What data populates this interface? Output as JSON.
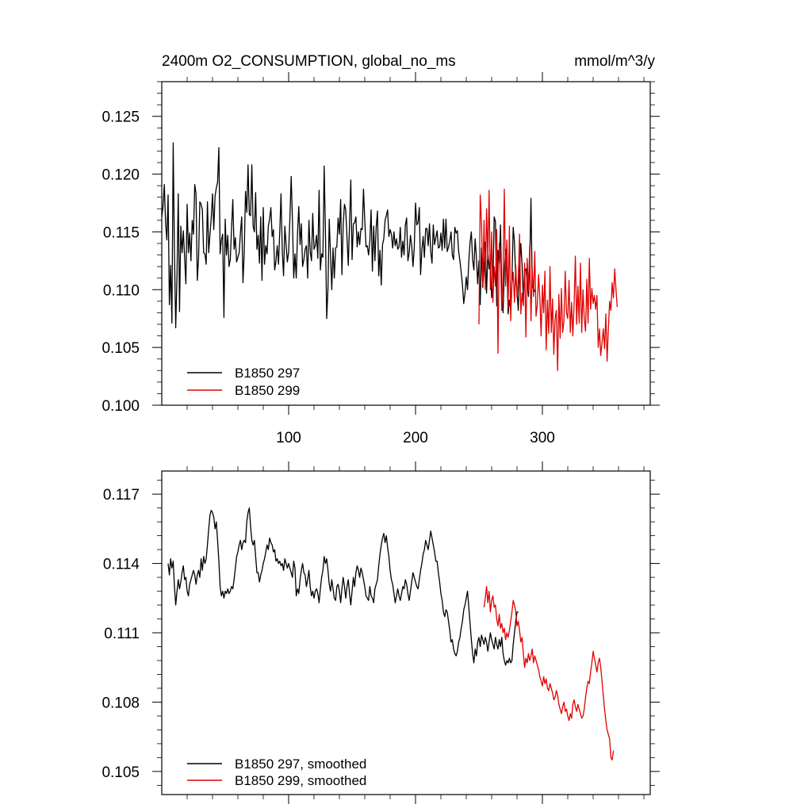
{
  "chart_data": [
    {
      "type": "line",
      "title": "2400m O2_CONSUMPTION, global_no_ms",
      "units": "mmol/m^3/y",
      "xlim": [
        0,
        385
      ],
      "ylim": [
        0.1,
        0.128
      ],
      "x_ticks": [
        100,
        200,
        300
      ],
      "y_ticks": [
        0.1,
        0.105,
        0.11,
        0.115,
        0.12,
        0.125
      ],
      "y_tick_labels": [
        "0.100",
        "0.105",
        "0.110",
        "0.115",
        "0.120",
        "0.125"
      ],
      "x_tick_labels": [
        "100",
        "200",
        "300"
      ],
      "legend_position": "bottom-left",
      "series": [
        {
          "name": "B1850 297",
          "color": "#000000",
          "x_start": 0,
          "values": [
            0.1163,
            0.1172,
            0.1191,
            0.1158,
            0.1143,
            0.1182,
            0.1087,
            0.1121,
            0.1071,
            0.1227,
            0.1132,
            0.1067,
            0.1112,
            0.1183,
            0.1081,
            0.1155,
            0.1132,
            0.1151,
            0.1128,
            0.1105,
            0.1174,
            0.1132,
            0.1149,
            0.1125,
            0.116,
            0.1148,
            0.1191,
            0.1183,
            0.1108,
            0.1127,
            0.1176,
            0.1174,
            0.1169,
            0.1132,
            0.1131,
            0.1122,
            0.1176,
            0.1132,
            0.1148,
            0.1162,
            0.1183,
            0.1152,
            0.1181,
            0.1188,
            0.1193,
            0.1223,
            0.1131,
            0.1143,
            0.1148,
            0.1076,
            0.1161,
            0.113,
            0.1147,
            0.112,
            0.1126,
            0.1153,
            0.1178,
            0.1135,
            0.1145,
            0.1124,
            0.1128,
            0.1132,
            0.1149,
            0.1163,
            0.1106,
            0.1132,
            0.1185,
            0.1167,
            0.1208,
            0.1165,
            0.1164,
            0.1208,
            0.1155,
            0.115,
            0.1184,
            0.1135,
            0.1147,
            0.1123,
            0.1163,
            0.1108,
            0.1171,
            0.1122,
            0.1138,
            0.1131,
            0.1155,
            0.1161,
            0.1171,
            0.1146,
            0.1152,
            0.1117,
            0.1125,
            0.1138,
            0.1122,
            0.115,
            0.1183,
            0.1133,
            0.1112,
            0.1155,
            0.1139,
            0.1124,
            0.1133,
            0.1162,
            0.1198,
            0.116,
            0.111,
            0.1131,
            0.111,
            0.1149,
            0.1172,
            0.1139,
            0.1157,
            0.112,
            0.1126,
            0.1135,
            0.1138,
            0.111,
            0.116,
            0.1133,
            0.1125,
            0.1166,
            0.1135,
            0.1138,
            0.1147,
            0.1127,
            0.1186,
            0.1117,
            0.1131,
            0.1128,
            0.1207,
            0.115,
            0.1075,
            0.1101,
            0.1161,
            0.113,
            0.11,
            0.1136,
            0.111,
            0.1136,
            0.1137,
            0.1162,
            0.1148,
            0.1178,
            0.1113,
            0.1156,
            0.1174,
            0.1169,
            0.1145,
            0.1121,
            0.1157,
            0.1195,
            0.1126,
            0.1157,
            0.1158,
            0.1163,
            0.1137,
            0.115,
            0.1139,
            0.1153,
            0.1152,
            0.1187,
            0.116,
            0.1137,
            0.1138,
            0.113,
            0.1142,
            0.1169,
            0.1116,
            0.1155,
            0.1125,
            0.1154,
            0.1168,
            0.1112,
            0.1134,
            0.1104,
            0.1139,
            0.1144,
            0.116,
            0.1164,
            0.1169,
            0.1146,
            0.1152,
            0.1148,
            0.1136,
            0.115,
            0.1138,
            0.1144,
            0.1135,
            0.1137,
            0.1154,
            0.1128,
            0.1142,
            0.113,
            0.1156,
            0.1162,
            0.1125,
            0.1132,
            0.1147,
            0.1138,
            0.112,
            0.1136,
            0.1175,
            0.1156,
            0.1158,
            0.1171,
            0.1113,
            0.1134,
            0.1146,
            0.1128,
            0.1153,
            0.1153,
            0.1138,
            0.1157,
            0.1133,
            0.1123,
            0.1156,
            0.1139,
            0.1145,
            0.1151,
            0.1136,
            0.1137,
            0.1149,
            0.1134,
            0.1161,
            0.1136,
            0.1161,
            0.1133,
            0.1137,
            0.1142,
            0.115,
            0.113,
            0.1126,
            0.1154,
            0.1149,
            0.1151,
            0.1133,
            0.1125,
            0.1115,
            0.1104,
            0.1088,
            0.1097,
            0.1111,
            0.11,
            0.1125,
            0.1141,
            0.115,
            0.1126,
            0.1117,
            0.1144,
            0.1128,
            0.1105,
            0.1125,
            0.1087,
            0.1136,
            0.1102,
            0.1119,
            0.1141,
            0.1097,
            0.1133,
            0.1118,
            0.1127,
            0.1093,
            0.1104,
            0.1163,
            0.1159,
            0.1086,
            0.1134,
            0.1123,
            0.1156,
            0.1094,
            0.108,
            0.1117,
            0.1135,
            0.1124,
            0.1079,
            0.1091,
            0.1083,
            0.1109,
            0.1154,
            0.1141,
            0.1109,
            0.1099,
            0.1082,
            0.1118,
            0.114,
            0.1121,
            0.1092,
            0.1117,
            0.1118,
            0.1107,
            0.1094,
            0.1122,
            0.1179,
            0.1102,
            0.1102,
            0.1098
          ]
        },
        {
          "name": "B1850 299",
          "color": "#e00000",
          "x_start": 250,
          "values": [
            0.107,
            0.1182,
            0.1158,
            0.1104,
            0.116,
            0.11,
            0.117,
            0.1126,
            0.1186,
            0.11,
            0.115,
            0.1089,
            0.112,
            0.1103,
            0.1152,
            0.1045,
            0.114,
            0.1128,
            0.1082,
            0.1114,
            0.1187,
            0.1103,
            0.1143,
            0.1084,
            0.1155,
            0.1073,
            0.1105,
            0.1115,
            0.1089,
            0.1121,
            0.1093,
            0.111,
            0.1148,
            0.1079,
            0.1097,
            0.1086,
            0.1123,
            0.1059,
            0.1127,
            0.1099,
            0.1138,
            0.1073,
            0.1118,
            0.1094,
            0.1133,
            0.1077,
            0.1087,
            0.1113,
            0.1093,
            0.106,
            0.1104,
            0.108,
            0.1116,
            0.1048,
            0.1091,
            0.1062,
            0.112,
            0.1063,
            0.1092,
            0.1044,
            0.1075,
            0.1082,
            0.103,
            0.1096,
            0.1058,
            0.1101,
            0.1063,
            0.1073,
            0.1116,
            0.108,
            0.1075,
            0.1108,
            0.1063,
            0.1089,
            0.106,
            0.1088,
            0.1129,
            0.107,
            0.1103,
            0.1071,
            0.1123,
            0.1063,
            0.11,
            0.1075,
            0.1064,
            0.1109,
            0.1071,
            0.1127,
            0.1083,
            0.1101,
            0.1088,
            0.1095,
            0.1083,
            0.1095,
            0.105,
            0.1066,
            0.1043,
            0.1054,
            0.1066,
            0.1049,
            0.1079,
            0.1038,
            0.1066,
            0.109,
            0.1082,
            0.1106,
            0.1093,
            0.1118,
            0.11,
            0.1085
          ]
        }
      ]
    },
    {
      "type": "line",
      "title": "",
      "xlim": [
        0,
        385
      ],
      "ylim": [
        0.104,
        0.118
      ],
      "x_ticks": [
        100,
        200,
        300
      ],
      "y_ticks": [
        0.105,
        0.108,
        0.111,
        0.114,
        0.117
      ],
      "y_tick_labels": [
        "0.105",
        "0.108",
        "0.111",
        "0.114",
        "0.117"
      ],
      "legend_position": "bottom-left",
      "series": [
        {
          "name": "B1850 297, smoothed",
          "color": "#000000",
          "x_start": 5,
          "values": [
            0.114,
            0.1135,
            0.1142,
            0.1138,
            0.1141,
            0.113,
            0.1122,
            0.1128,
            0.1133,
            0.1129,
            0.1132,
            0.1136,
            0.1139,
            0.1133,
            0.1134,
            0.1128,
            0.1126,
            0.1131,
            0.1133,
            0.1135,
            0.1137,
            0.1135,
            0.1131,
            0.1135,
            0.1137,
            0.1134,
            0.1142,
            0.1137,
            0.1143,
            0.114,
            0.1142,
            0.1148,
            0.1155,
            0.1161,
            0.1163,
            0.1162,
            0.116,
            0.1155,
            0.1158,
            0.115,
            0.1141,
            0.113,
            0.1126,
            0.1128,
            0.1125,
            0.1128,
            0.1127,
            0.1129,
            0.1127,
            0.1128,
            0.113,
            0.1129,
            0.1133,
            0.1138,
            0.1143,
            0.1145,
            0.1148,
            0.115,
            0.1146,
            0.1149,
            0.115,
            0.1149,
            0.1158,
            0.1162,
            0.1164,
            0.1156,
            0.115,
            0.1148,
            0.115,
            0.1143,
            0.1136,
            0.1136,
            0.1132,
            0.1135,
            0.1137,
            0.114,
            0.1142,
            0.1145,
            0.1148,
            0.1146,
            0.1151,
            0.1149,
            0.1148,
            0.1145,
            0.1146,
            0.1141,
            0.1142,
            0.114,
            0.1141,
            0.1139,
            0.114,
            0.1137,
            0.1142,
            0.114,
            0.1138,
            0.114,
            0.1138,
            0.1136,
            0.1134,
            0.1141,
            0.1138,
            0.1126,
            0.1129,
            0.1127,
            0.1133,
            0.1137,
            0.114,
            0.1136,
            0.1135,
            0.113,
            0.1133,
            0.1137,
            0.113,
            0.1126,
            0.1128,
            0.1125,
            0.1128,
            0.1129,
            0.1127,
            0.1123,
            0.1129,
            0.1134,
            0.1137,
            0.1143,
            0.114,
            0.1142,
            0.1137,
            0.1131,
            0.1128,
            0.1133,
            0.1129,
            0.1125,
            0.1124,
            0.113,
            0.1131,
            0.1128,
            0.1123,
            0.1129,
            0.1134,
            0.113,
            0.1125,
            0.113,
            0.1133,
            0.1127,
            0.1122,
            0.1128,
            0.1134,
            0.113,
            0.1136,
            0.1139,
            0.1137,
            0.1134,
            0.1138,
            0.1136,
            0.1133,
            0.113,
            0.1126,
            0.1125,
            0.1124,
            0.113,
            0.1126,
            0.1125,
            0.1123,
            0.1129,
            0.1131,
            0.1133,
            0.1139,
            0.1144,
            0.1148,
            0.1151,
            0.1153,
            0.1149,
            0.1152,
            0.1147,
            0.1143,
            0.1137,
            0.1133,
            0.1131,
            0.1127,
            0.1123,
            0.1126,
            0.1129,
            0.1126,
            0.1124,
            0.1127,
            0.113,
            0.1129,
            0.1133,
            0.1131,
            0.1127,
            0.1124,
            0.1128,
            0.1132,
            0.1136,
            0.1134,
            0.1132,
            0.113,
            0.1129,
            0.1133,
            0.1137,
            0.114,
            0.1144,
            0.1146,
            0.115,
            0.1148,
            0.1146,
            0.115,
            0.1154,
            0.1151,
            0.1148,
            0.1145,
            0.1141,
            0.1141,
            0.1136,
            0.1132,
            0.1127,
            0.1124,
            0.1119,
            0.1117,
            0.112,
            0.1119,
            0.1115,
            0.1111,
            0.1106,
            0.1107,
            0.1103,
            0.1101,
            0.11,
            0.1102,
            0.1106,
            0.1108,
            0.1112,
            0.1115,
            0.112,
            0.1122,
            0.1125,
            0.1128,
            0.1121,
            0.1114,
            0.1107,
            0.1101,
            0.1097,
            0.1103,
            0.11,
            0.1106,
            0.1108,
            0.1104,
            0.1109,
            0.1107,
            0.1105,
            0.1108,
            0.1106,
            0.1102,
            0.1106,
            0.111,
            0.1107,
            0.1105,
            0.1103,
            0.1108,
            0.1105,
            0.1103,
            0.1107,
            0.1104,
            0.1108,
            0.1101,
            0.1098,
            0.1096,
            0.1098,
            0.1097,
            0.1099,
            0.1097,
            0.1098,
            0.1105,
            0.111,
            0.1115,
            0.1119,
            0.1119
          ]
        },
        {
          "name": "B1850 299, smoothed",
          "color": "#e00000",
          "x_start": 254,
          "values": [
            0.1121,
            0.1125,
            0.113,
            0.1123,
            0.1128,
            0.1119,
            0.1124,
            0.1126,
            0.1121,
            0.1122,
            0.1116,
            0.1113,
            0.1118,
            0.1112,
            0.1114,
            0.111,
            0.1112,
            0.1107,
            0.111,
            0.1108,
            0.1111,
            0.1115,
            0.1119,
            0.1124,
            0.1122,
            0.1119,
            0.1113,
            0.1115,
            0.1111,
            0.1106,
            0.1108,
            0.1101,
            0.1095,
            0.1099,
            0.1097,
            0.1101,
            0.1098,
            0.11,
            0.1103,
            0.1097,
            0.11,
            0.1098,
            0.1096,
            0.1094,
            0.1091,
            0.1089,
            0.1087,
            0.1091,
            0.1088,
            0.109,
            0.1086,
            0.1085,
            0.1088,
            0.1086,
            0.1084,
            0.1081,
            0.1082,
            0.1085,
            0.1083,
            0.1079,
            0.1077,
            0.1075,
            0.1078,
            0.108,
            0.1076,
            0.1077,
            0.1074,
            0.1072,
            0.1075,
            0.1073,
            0.1079,
            0.1081,
            0.1078,
            0.1076,
            0.1079,
            0.1077,
            0.1075,
            0.1073,
            0.1074,
            0.1077,
            0.1082,
            0.1086,
            0.1089,
            0.1088,
            0.1093,
            0.1097,
            0.1102,
            0.1099,
            0.1096,
            0.1093,
            0.1097,
            0.1099,
            0.1095,
            0.1089,
            0.1083,
            0.1077,
            0.1072,
            0.1068,
            0.1066,
            0.1064,
            0.1056,
            0.1055,
            0.1059
          ]
        }
      ]
    }
  ]
}
